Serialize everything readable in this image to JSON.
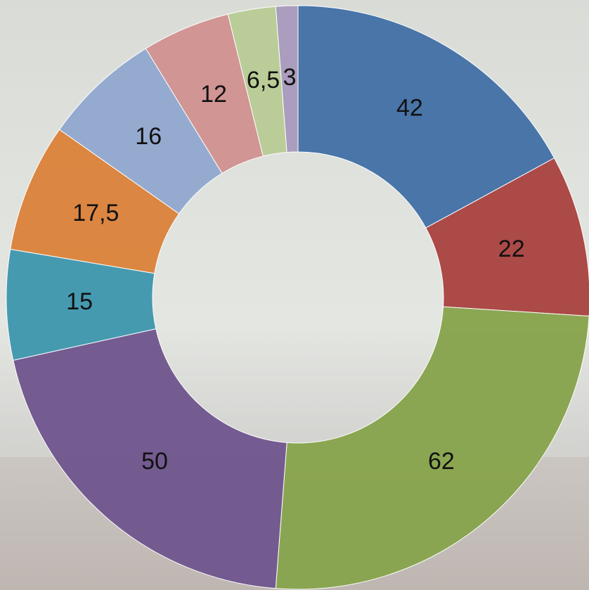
{
  "chart_data": {
    "type": "donut",
    "values": [
      42,
      22,
      62,
      50,
      15,
      17.5,
      16,
      12,
      6.5,
      3
    ],
    "value_labels": [
      "42",
      "22",
      "62",
      "50",
      "15",
      "17,5",
      "16",
      "12",
      "6,5",
      "3"
    ],
    "colors": [
      "#4572a7",
      "#aa4643",
      "#89a54e",
      "#71588f",
      "#4198af",
      "#db843d",
      "#93a9cf",
      "#d19392",
      "#b9cd96",
      "#a99bbd"
    ]
  }
}
